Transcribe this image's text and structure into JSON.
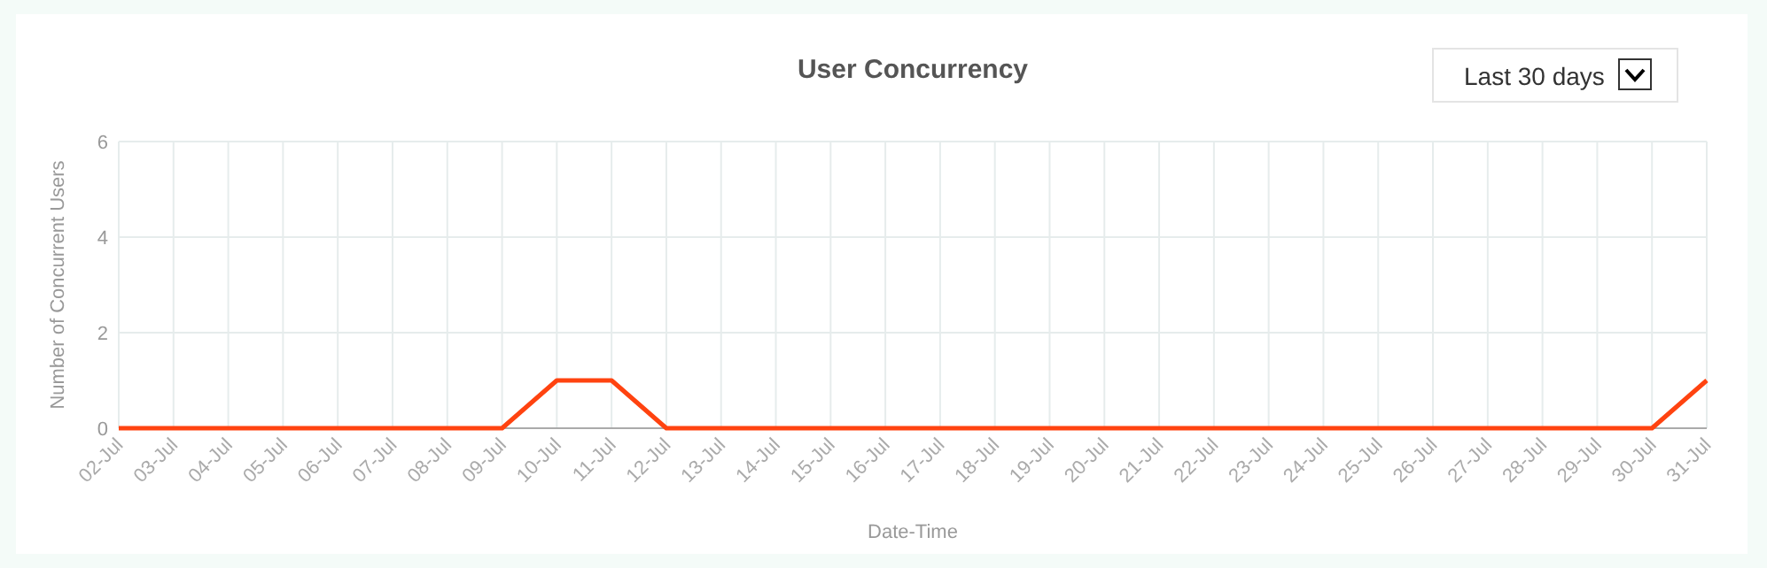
{
  "chart_data": {
    "type": "line",
    "title": "User Concurrency",
    "xlabel": "Date-Time",
    "ylabel": "Number of Concurrent Users",
    "categories": [
      "02-Jul",
      "03-Jul",
      "04-Jul",
      "05-Jul",
      "06-Jul",
      "07-Jul",
      "08-Jul",
      "09-Jul",
      "10-Jul",
      "11-Jul",
      "12-Jul",
      "13-Jul",
      "14-Jul",
      "15-Jul",
      "16-Jul",
      "17-Jul",
      "18-Jul",
      "19-Jul",
      "20-Jul",
      "21-Jul",
      "22-Jul",
      "23-Jul",
      "24-Jul",
      "25-Jul",
      "26-Jul",
      "27-Jul",
      "28-Jul",
      "29-Jul",
      "30-Jul",
      "31-Jul"
    ],
    "series": [
      {
        "color": "#ff4310",
        "values": [
          0,
          0,
          0,
          0,
          0,
          0,
          0,
          0,
          1,
          1,
          0,
          0,
          0,
          0,
          0,
          0,
          0,
          0,
          0,
          0,
          0,
          0,
          0,
          0,
          0,
          0,
          0,
          0,
          0,
          1
        ]
      }
    ],
    "ylim": [
      0,
      6
    ],
    "yticks": [
      0,
      2,
      4,
      6
    ],
    "grid": true,
    "marker": "none",
    "line_style": "solid",
    "annotations": [
      "Last 30 days"
    ]
  }
}
